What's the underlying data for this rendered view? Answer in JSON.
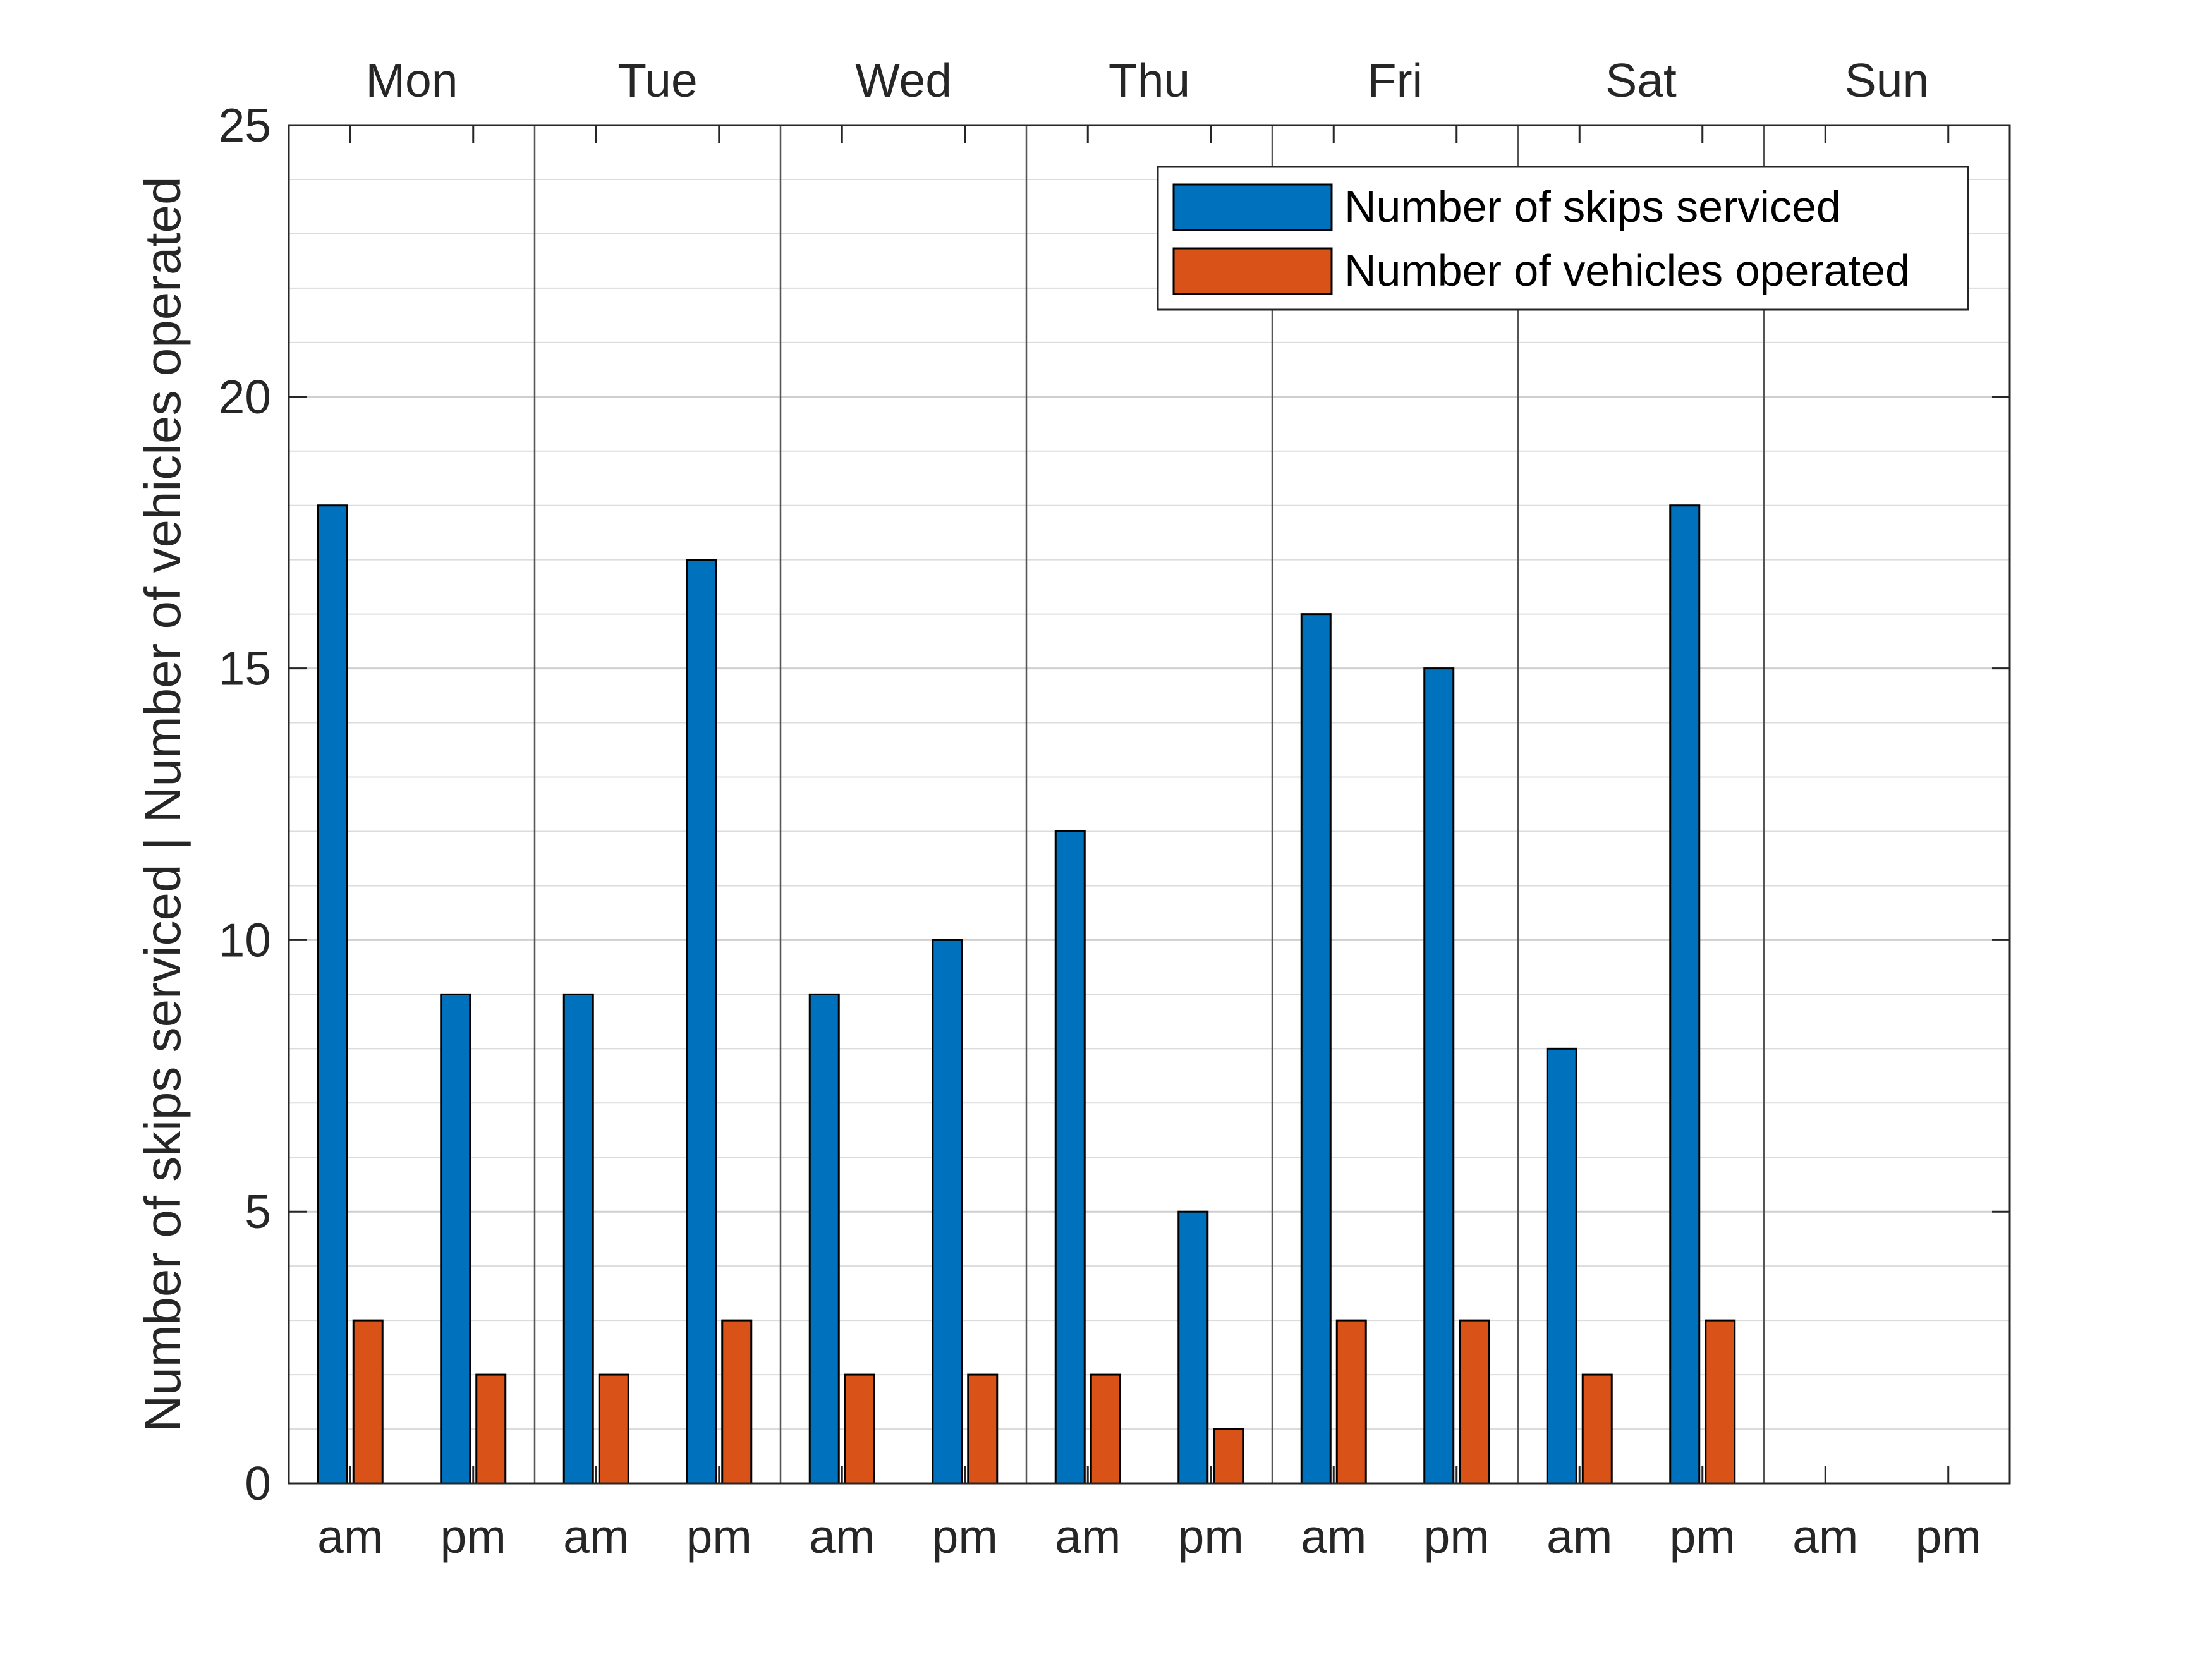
{
  "chart_data": {
    "type": "bar",
    "title": "",
    "ylabel": "Number of skips serviced | Number of vehicles operated",
    "xlabel": "",
    "ylim": [
      0,
      25
    ],
    "yticks": [
      0,
      5,
      10,
      15,
      20,
      25
    ],
    "grid": true,
    "minor_grid": true,
    "legend_position": "top-right",
    "day_labels": [
      "Mon",
      "Tue",
      "Wed",
      "Thu",
      "Fri",
      "Sat",
      "Sun"
    ],
    "categories": [
      "am",
      "pm",
      "am",
      "pm",
      "am",
      "pm",
      "am",
      "pm",
      "am",
      "pm",
      "am",
      "pm",
      "am",
      "pm"
    ],
    "series": [
      {
        "name": "Number of skips serviced",
        "color": "#0072BD",
        "values": [
          18,
          9,
          9,
          17,
          9,
          10,
          12,
          5,
          16,
          15,
          8,
          18,
          0,
          0
        ]
      },
      {
        "name": "Number of vehicles operated",
        "color": "#D95319",
        "values": [
          3,
          2,
          2,
          3,
          2,
          2,
          2,
          1,
          3,
          3,
          2,
          3,
          0,
          0
        ]
      }
    ]
  }
}
